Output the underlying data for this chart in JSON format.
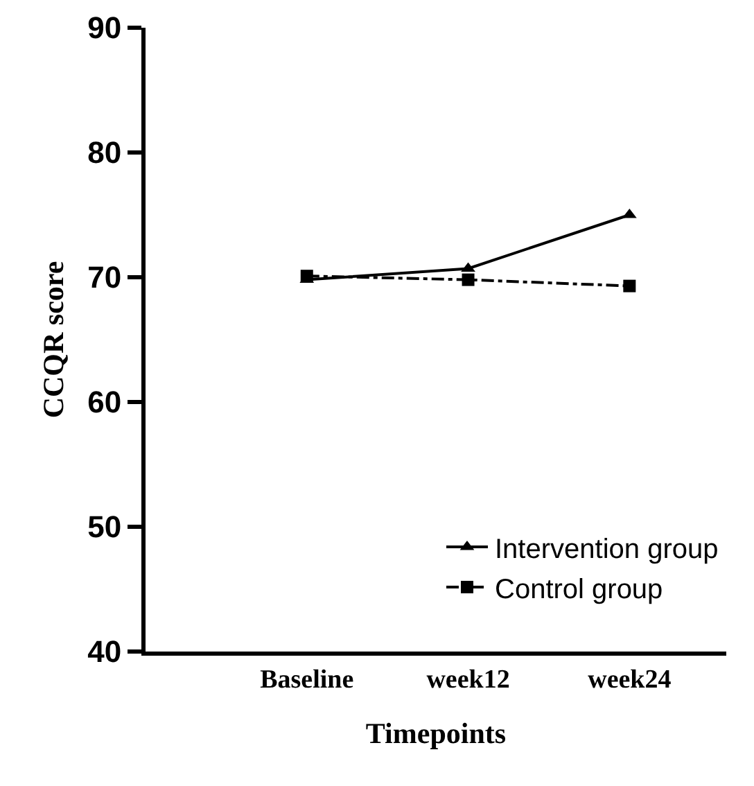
{
  "chart_data": {
    "type": "line",
    "xlabel": "Timepoints",
    "ylabel": "CCQR score",
    "categories": [
      "Baseline",
      "week12",
      "week24"
    ],
    "series": [
      {
        "name": "Intervention group",
        "color": "#000000",
        "marker": "triangle",
        "line_style": "solid",
        "values": [
          69.8,
          70.7,
          75
        ]
      },
      {
        "name": "Control group",
        "color": "#000000",
        "marker": "square",
        "line_style": "dashed",
        "values": [
          70.1,
          69.8,
          69.3
        ]
      }
    ],
    "ylim": [
      40,
      90
    ],
    "yticks": [
      40,
      50,
      60,
      70,
      80,
      90
    ],
    "grid": false,
    "legend": "bottom right"
  }
}
